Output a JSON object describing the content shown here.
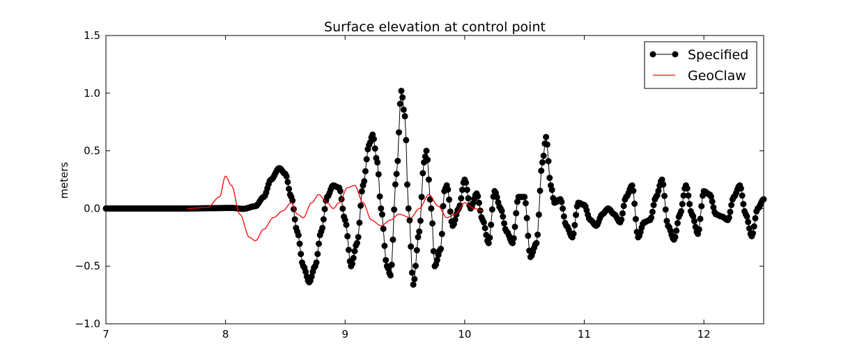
{
  "chart_data": {
    "type": "line",
    "title": "Surface elevation at control point",
    "xlabel": "",
    "ylabel": "meters",
    "xlim": [
      7,
      12.5
    ],
    "ylim": [
      -1.0,
      1.5
    ],
    "xticks": [
      7,
      8,
      9,
      10,
      11,
      12
    ],
    "yticks": [
      -1.0,
      -0.5,
      0.0,
      0.5,
      1.0,
      1.5
    ],
    "grid": false,
    "legend_position": "top-right",
    "series": [
      {
        "name": "Specified",
        "color": "#000000",
        "marker": "circle",
        "x_start": 7.0,
        "x_step": 0.01,
        "keypoints": [
          [
            7.0,
            0.0
          ],
          [
            7.7,
            0.0
          ],
          [
            7.9,
            0.003
          ],
          [
            8.05,
            0.005
          ],
          [
            8.15,
            -0.003
          ],
          [
            8.25,
            0.02
          ],
          [
            8.32,
            0.1
          ],
          [
            8.38,
            0.25
          ],
          [
            8.45,
            0.35
          ],
          [
            8.5,
            0.3
          ],
          [
            8.55,
            0.1
          ],
          [
            8.6,
            -0.2
          ],
          [
            8.65,
            -0.5
          ],
          [
            8.7,
            -0.64
          ],
          [
            8.75,
            -0.5
          ],
          [
            8.8,
            -0.2
          ],
          [
            8.85,
            0.1
          ],
          [
            8.9,
            0.2
          ],
          [
            8.95,
            0.18
          ],
          [
            9.0,
            -0.1
          ],
          [
            9.05,
            -0.5
          ],
          [
            9.1,
            -0.3
          ],
          [
            9.15,
            0.2
          ],
          [
            9.2,
            0.55
          ],
          [
            9.23,
            0.64
          ],
          [
            9.27,
            0.4
          ],
          [
            9.3,
            0.0
          ],
          [
            9.35,
            -0.5
          ],
          [
            9.38,
            -0.58
          ],
          [
            9.43,
            0.3
          ],
          [
            9.47,
            1.02
          ],
          [
            9.5,
            0.8
          ],
          [
            9.53,
            0.0
          ],
          [
            9.57,
            -0.66
          ],
          [
            9.62,
            -0.2
          ],
          [
            9.66,
            0.4
          ],
          [
            9.68,
            0.5
          ],
          [
            9.72,
            0.0
          ],
          [
            9.75,
            -0.5
          ],
          [
            9.8,
            -0.35
          ],
          [
            9.83,
            0.15
          ],
          [
            9.85,
            0.2
          ],
          [
            9.9,
            -0.15
          ],
          [
            9.95,
            0.0
          ],
          [
            10.0,
            0.25
          ],
          [
            10.05,
            0.0
          ],
          [
            10.1,
            0.13
          ],
          [
            10.15,
            -0.1
          ],
          [
            10.2,
            -0.3
          ],
          [
            10.25,
            0.15
          ],
          [
            10.3,
            0.0
          ],
          [
            10.35,
            -0.2
          ],
          [
            10.4,
            -0.3
          ],
          [
            10.45,
            0.1
          ],
          [
            10.5,
            0.1
          ],
          [
            10.55,
            -0.42
          ],
          [
            10.6,
            -0.3
          ],
          [
            10.65,
            0.4
          ],
          [
            10.68,
            0.62
          ],
          [
            10.72,
            0.2
          ],
          [
            10.75,
            0.05
          ],
          [
            10.8,
            0.08
          ],
          [
            10.85,
            -0.15
          ],
          [
            10.9,
            -0.25
          ],
          [
            10.95,
            0.05
          ],
          [
            11.0,
            0.03
          ],
          [
            11.05,
            -0.1
          ],
          [
            11.1,
            -0.15
          ],
          [
            11.15,
            -0.05
          ],
          [
            11.2,
            0.0
          ],
          [
            11.25,
            -0.05
          ],
          [
            11.3,
            -0.12
          ],
          [
            11.35,
            0.1
          ],
          [
            11.4,
            0.2
          ],
          [
            11.45,
            -0.25
          ],
          [
            11.5,
            -0.12
          ],
          [
            11.55,
            -0.1
          ],
          [
            11.6,
            0.1
          ],
          [
            11.65,
            0.25
          ],
          [
            11.7,
            -0.15
          ],
          [
            11.75,
            -0.27
          ],
          [
            11.8,
            -0.05
          ],
          [
            11.85,
            0.2
          ],
          [
            11.9,
            -0.05
          ],
          [
            11.95,
            -0.22
          ],
          [
            12.0,
            0.15
          ],
          [
            12.05,
            0.12
          ],
          [
            12.1,
            -0.05
          ],
          [
            12.15,
            -0.07
          ],
          [
            12.2,
            -0.1
          ],
          [
            12.25,
            0.1
          ],
          [
            12.3,
            0.2
          ],
          [
            12.35,
            -0.05
          ],
          [
            12.4,
            -0.24
          ],
          [
            12.45,
            0.0
          ],
          [
            12.5,
            0.08
          ]
        ]
      },
      {
        "name": "GeoClaw",
        "color": "#ff0000",
        "marker": "none",
        "keypoints": [
          [
            7.68,
            0.0
          ],
          [
            7.85,
            0.01
          ],
          [
            7.95,
            0.1
          ],
          [
            8.0,
            0.28
          ],
          [
            8.05,
            0.2
          ],
          [
            8.12,
            -0.05
          ],
          [
            8.2,
            -0.25
          ],
          [
            8.25,
            -0.28
          ],
          [
            8.32,
            -0.18
          ],
          [
            8.4,
            -0.08
          ],
          [
            8.48,
            -0.02
          ],
          [
            8.55,
            0.05
          ],
          [
            8.6,
            -0.05
          ],
          [
            8.65,
            -0.08
          ],
          [
            8.72,
            0.05
          ],
          [
            8.78,
            0.12
          ],
          [
            8.85,
            0.05
          ],
          [
            8.9,
            0.0
          ],
          [
            8.95,
            0.05
          ],
          [
            9.02,
            0.18
          ],
          [
            9.08,
            0.2
          ],
          [
            9.15,
            0.05
          ],
          [
            9.22,
            -0.1
          ],
          [
            9.3,
            -0.15
          ],
          [
            9.38,
            -0.1
          ],
          [
            9.45,
            -0.05
          ],
          [
            9.55,
            -0.08
          ],
          [
            9.62,
            0.0
          ],
          [
            9.7,
            0.12
          ],
          [
            9.78,
            0.02
          ],
          [
            9.85,
            -0.08
          ],
          [
            9.92,
            -0.05
          ],
          [
            10.0,
            0.05
          ],
          [
            10.08,
            0.0
          ],
          [
            10.15,
            -0.02
          ]
        ]
      }
    ]
  }
}
